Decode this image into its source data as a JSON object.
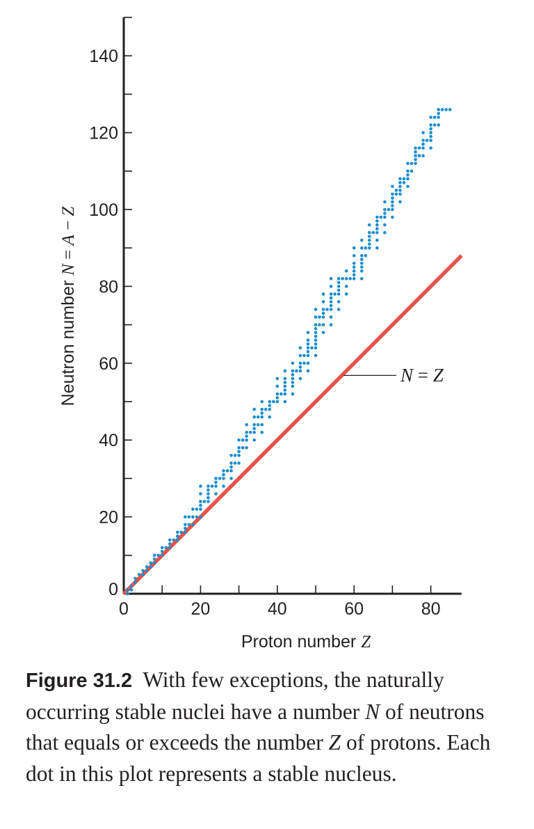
{
  "chart_data": {
    "type": "scatter",
    "xlabel": "Proton number Z",
    "ylabel": "Neutron number N = A − Z",
    "xlim": [
      0,
      88
    ],
    "ylim": [
      0,
      150
    ],
    "xticks": [
      0,
      20,
      40,
      60,
      80
    ],
    "yticks": [
      0,
      20,
      40,
      60,
      80,
      100,
      120,
      140
    ],
    "grid": false,
    "series": [
      {
        "name": "stable nuclei",
        "color": "#1b8ccc",
        "points": [
          [
            1,
            0
          ],
          [
            1,
            1
          ],
          [
            2,
            1
          ],
          [
            2,
            2
          ],
          [
            3,
            3
          ],
          [
            3,
            4
          ],
          [
            4,
            5
          ],
          [
            5,
            5
          ],
          [
            5,
            6
          ],
          [
            6,
            6
          ],
          [
            6,
            7
          ],
          [
            7,
            7
          ],
          [
            7,
            8
          ],
          [
            8,
            8
          ],
          [
            8,
            9
          ],
          [
            8,
            10
          ],
          [
            9,
            10
          ],
          [
            10,
            10
          ],
          [
            10,
            11
          ],
          [
            10,
            12
          ],
          [
            11,
            12
          ],
          [
            12,
            12
          ],
          [
            12,
            13
          ],
          [
            12,
            14
          ],
          [
            13,
            14
          ],
          [
            14,
            14
          ],
          [
            14,
            15
          ],
          [
            14,
            16
          ],
          [
            15,
            16
          ],
          [
            16,
            16
          ],
          [
            16,
            17
          ],
          [
            16,
            18
          ],
          [
            16,
            20
          ],
          [
            17,
            18
          ],
          [
            17,
            20
          ],
          [
            18,
            18
          ],
          [
            18,
            20
          ],
          [
            18,
            22
          ],
          [
            19,
            20
          ],
          [
            19,
            22
          ],
          [
            20,
            20
          ],
          [
            20,
            22
          ],
          [
            20,
            23
          ],
          [
            20,
            24
          ],
          [
            20,
            26
          ],
          [
            20,
            28
          ],
          [
            21,
            24
          ],
          [
            22,
            24
          ],
          [
            22,
            25
          ],
          [
            22,
            26
          ],
          [
            22,
            27
          ],
          [
            22,
            28
          ],
          [
            23,
            28
          ],
          [
            24,
            26
          ],
          [
            24,
            28
          ],
          [
            24,
            29
          ],
          [
            24,
            30
          ],
          [
            25,
            30
          ],
          [
            26,
            28
          ],
          [
            26,
            30
          ],
          [
            26,
            31
          ],
          [
            26,
            32
          ],
          [
            27,
            32
          ],
          [
            28,
            30
          ],
          [
            28,
            32
          ],
          [
            28,
            33
          ],
          [
            28,
            34
          ],
          [
            28,
            36
          ],
          [
            29,
            34
          ],
          [
            29,
            36
          ],
          [
            30,
            34
          ],
          [
            30,
            36
          ],
          [
            30,
            37
          ],
          [
            30,
            38
          ],
          [
            30,
            40
          ],
          [
            31,
            38
          ],
          [
            31,
            40
          ],
          [
            32,
            38
          ],
          [
            32,
            40
          ],
          [
            32,
            41
          ],
          [
            32,
            42
          ],
          [
            32,
            44
          ],
          [
            33,
            42
          ],
          [
            34,
            40
          ],
          [
            34,
            42
          ],
          [
            34,
            43
          ],
          [
            34,
            44
          ],
          [
            34,
            46
          ],
          [
            34,
            48
          ],
          [
            35,
            44
          ],
          [
            35,
            46
          ],
          [
            36,
            42
          ],
          [
            36,
            44
          ],
          [
            36,
            46
          ],
          [
            36,
            47
          ],
          [
            36,
            48
          ],
          [
            36,
            50
          ],
          [
            37,
            48
          ],
          [
            38,
            46
          ],
          [
            38,
            48
          ],
          [
            38,
            49
          ],
          [
            38,
            50
          ],
          [
            39,
            50
          ],
          [
            40,
            50
          ],
          [
            40,
            51
          ],
          [
            40,
            52
          ],
          [
            40,
            54
          ],
          [
            40,
            56
          ],
          [
            41,
            52
          ],
          [
            42,
            50
          ],
          [
            42,
            52
          ],
          [
            42,
            53
          ],
          [
            42,
            54
          ],
          [
            42,
            55
          ],
          [
            42,
            56
          ],
          [
            42,
            58
          ],
          [
            44,
            52
          ],
          [
            44,
            54
          ],
          [
            44,
            55
          ],
          [
            44,
            56
          ],
          [
            44,
            57
          ],
          [
            44,
            58
          ],
          [
            44,
            60
          ],
          [
            45,
            58
          ],
          [
            46,
            56
          ],
          [
            46,
            58
          ],
          [
            46,
            59
          ],
          [
            46,
            60
          ],
          [
            46,
            62
          ],
          [
            46,
            64
          ],
          [
            47,
            60
          ],
          [
            47,
            62
          ],
          [
            48,
            58
          ],
          [
            48,
            60
          ],
          [
            48,
            62
          ],
          [
            48,
            63
          ],
          [
            48,
            64
          ],
          [
            48,
            65
          ],
          [
            48,
            66
          ],
          [
            48,
            68
          ],
          [
            49,
            64
          ],
          [
            50,
            62
          ],
          [
            50,
            64
          ],
          [
            50,
            65
          ],
          [
            50,
            66
          ],
          [
            50,
            67
          ],
          [
            50,
            68
          ],
          [
            50,
            69
          ],
          [
            50,
            70
          ],
          [
            50,
            72
          ],
          [
            50,
            74
          ],
          [
            51,
            70
          ],
          [
            51,
            72
          ],
          [
            52,
            68
          ],
          [
            52,
            70
          ],
          [
            52,
            72
          ],
          [
            52,
            73
          ],
          [
            52,
            74
          ],
          [
            52,
            76
          ],
          [
            52,
            78
          ],
          [
            53,
            74
          ],
          [
            54,
            70
          ],
          [
            54,
            72
          ],
          [
            54,
            74
          ],
          [
            54,
            75
          ],
          [
            54,
            76
          ],
          [
            54,
            77
          ],
          [
            54,
            78
          ],
          [
            54,
            80
          ],
          [
            54,
            82
          ],
          [
            55,
            78
          ],
          [
            56,
            74
          ],
          [
            56,
            76
          ],
          [
            56,
            78
          ],
          [
            56,
            79
          ],
          [
            56,
            80
          ],
          [
            56,
            81
          ],
          [
            56,
            82
          ],
          [
            57,
            82
          ],
          [
            58,
            78
          ],
          [
            58,
            80
          ],
          [
            58,
            82
          ],
          [
            58,
            84
          ],
          [
            59,
            82
          ],
          [
            60,
            82
          ],
          [
            60,
            83
          ],
          [
            60,
            84
          ],
          [
            60,
            85
          ],
          [
            60,
            86
          ],
          [
            60,
            88
          ],
          [
            60,
            90
          ],
          [
            62,
            82
          ],
          [
            62,
            84
          ],
          [
            62,
            85
          ],
          [
            62,
            86
          ],
          [
            62,
            87
          ],
          [
            62,
            88
          ],
          [
            62,
            90
          ],
          [
            62,
            92
          ],
          [
            63,
            88
          ],
          [
            63,
            90
          ],
          [
            64,
            90
          ],
          [
            64,
            91
          ],
          [
            64,
            92
          ],
          [
            64,
            93
          ],
          [
            64,
            94
          ],
          [
            64,
            96
          ],
          [
            65,
            94
          ],
          [
            66,
            90
          ],
          [
            66,
            92
          ],
          [
            66,
            94
          ],
          [
            66,
            95
          ],
          [
            66,
            96
          ],
          [
            66,
            97
          ],
          [
            66,
            98
          ],
          [
            67,
            98
          ],
          [
            68,
            94
          ],
          [
            68,
            96
          ],
          [
            68,
            98
          ],
          [
            68,
            99
          ],
          [
            68,
            100
          ],
          [
            68,
            102
          ],
          [
            69,
            100
          ],
          [
            70,
            98
          ],
          [
            70,
            100
          ],
          [
            70,
            101
          ],
          [
            70,
            102
          ],
          [
            70,
            103
          ],
          [
            70,
            104
          ],
          [
            70,
            106
          ],
          [
            71,
            104
          ],
          [
            71,
            105
          ],
          [
            72,
            102
          ],
          [
            72,
            104
          ],
          [
            72,
            105
          ],
          [
            72,
            106
          ],
          [
            72,
            107
          ],
          [
            72,
            108
          ],
          [
            73,
            107
          ],
          [
            73,
            108
          ],
          [
            74,
            106
          ],
          [
            74,
            108
          ],
          [
            74,
            109
          ],
          [
            74,
            110
          ],
          [
            74,
            112
          ],
          [
            75,
            110
          ],
          [
            75,
            112
          ],
          [
            76,
            112
          ],
          [
            76,
            113
          ],
          [
            76,
            114
          ],
          [
            76,
            115
          ],
          [
            76,
            116
          ],
          [
            77,
            114
          ],
          [
            77,
            116
          ],
          [
            78,
            114
          ],
          [
            78,
            116
          ],
          [
            78,
            117
          ],
          [
            78,
            118
          ],
          [
            78,
            120
          ],
          [
            79,
            118
          ],
          [
            80,
            116
          ],
          [
            80,
            118
          ],
          [
            80,
            119
          ],
          [
            80,
            120
          ],
          [
            80,
            121
          ],
          [
            80,
            122
          ],
          [
            80,
            124
          ],
          [
            81,
            122
          ],
          [
            81,
            124
          ],
          [
            82,
            122
          ],
          [
            82,
            124
          ],
          [
            82,
            125
          ],
          [
            82,
            126
          ],
          [
            83,
            126
          ],
          [
            84,
            126
          ],
          [
            85,
            126
          ]
        ]
      },
      {
        "name": "N = Z",
        "color": "#e8534a",
        "line": [
          [
            0,
            0
          ],
          [
            88,
            88
          ]
        ]
      }
    ],
    "annotations": [
      {
        "text": "N = Z",
        "point": [
          58,
          57
        ]
      }
    ]
  },
  "caption": {
    "label": "Figure 31.2",
    "t1": "With few exceptions, the naturally occurring stable nuclei have a number ",
    "v1": "N",
    "t2": " of neutrons that equals or exceeds the number ",
    "v2": "Z",
    "t3": " of protons. Each dot in this plot represents a stable nucleus."
  },
  "labels": {
    "y_prefix": "Neutron number ",
    "y_n": "N",
    "y_eq": " = ",
    "y_a": "A",
    "y_minus": " − ",
    "y_z": "Z",
    "x_prefix": "Proton number ",
    "x_z": "Z",
    "nz_n": "N",
    "nz_eq": " = ",
    "nz_z": "Z"
  }
}
